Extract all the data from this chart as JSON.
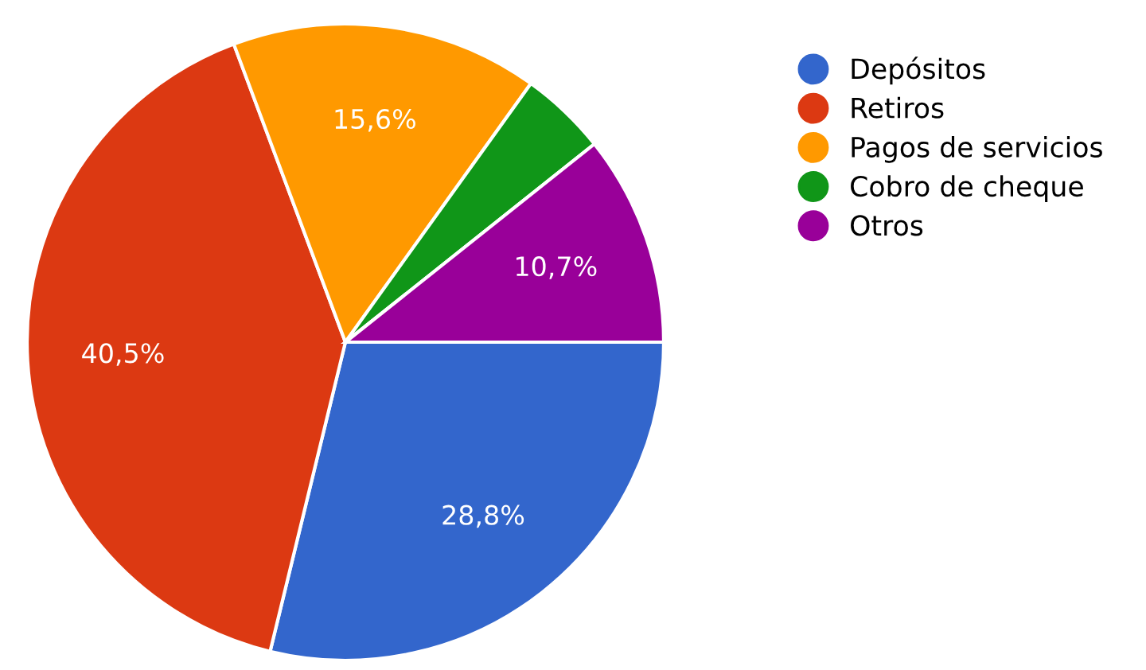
{
  "chart_data": {
    "type": "pie",
    "categories": [
      "Depósitos",
      "Retiros",
      "Pagos de servicios",
      "Cobro de cheque",
      "Otros"
    ],
    "values": [
      28.8,
      40.5,
      15.6,
      4.4,
      10.7
    ],
    "value_labels": [
      "28,8%",
      "40,5%",
      "15,6%",
      null,
      "10,7%"
    ],
    "colors": [
      "#3366cc",
      "#dc3912",
      "#ff9900",
      "#109618",
      "#990099"
    ],
    "legend": "right"
  }
}
